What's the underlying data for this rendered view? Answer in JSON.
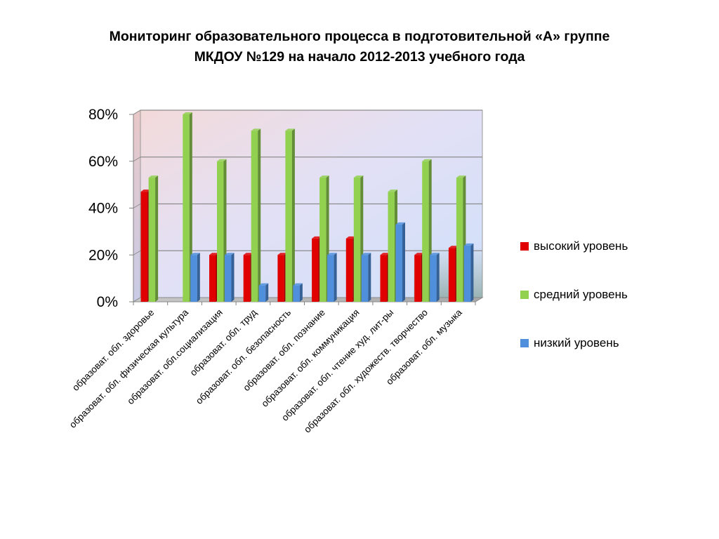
{
  "title": {
    "line1": "Мониторинг образовательного процесса в подготовительной «А» группе",
    "line2": "МКДОУ №129 на начало 2012-2013 учебного года"
  },
  "chart_data": {
    "type": "bar",
    "title": "Мониторинг образовательного процесса в подготовительной «А» группе МКДОУ №129 на начало 2012-2013 учебного года",
    "xlabel": "",
    "ylabel": "",
    "ylim": [
      0,
      0.8
    ],
    "y_ticks": [
      "0%",
      "20%",
      "40%",
      "60%",
      "80%"
    ],
    "grid": true,
    "legend_position": "right",
    "categories": [
      "образоват. обл. здоровье",
      "образоват. обл. физическая культура",
      "образоват. обл.социализация",
      "образоват. обл. труд",
      "образоват. обл. безопасность",
      "образоват. обл. познание",
      "образоват. обл. коммуникация",
      "образоват. обл. чтение худ. лит-ры",
      "образоват. обл. художеств. творчество",
      "образоват. обл. музыка"
    ],
    "series": [
      {
        "name": "высокий уровень",
        "color": "#e00000",
        "values": [
          0.47,
          0,
          0.2,
          0.2,
          0.2,
          0.27,
          0.27,
          0.2,
          0.2,
          0.23
        ]
      },
      {
        "name": "средний уровень",
        "color": "#92d050",
        "values": [
          0.53,
          0.8,
          0.6,
          0.73,
          0.73,
          0.53,
          0.53,
          0.47,
          0.6,
          0.53
        ]
      },
      {
        "name": "низкий уровень",
        "color": "#4f8fdc",
        "values": [
          0,
          0.2,
          0.2,
          0.07,
          0.07,
          0.2,
          0.2,
          0.33,
          0.2,
          0.24
        ]
      }
    ]
  }
}
